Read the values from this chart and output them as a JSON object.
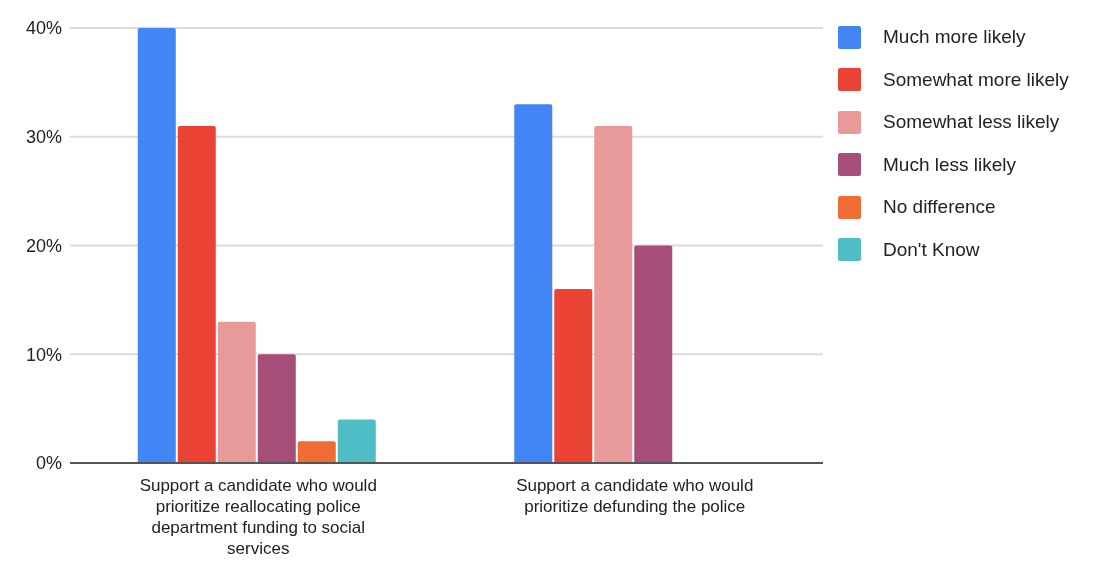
{
  "chart_data": {
    "type": "bar",
    "categories": [
      "Support a candidate who would prioritize reallocating police department funding to social services",
      "Support a candidate who would prioritize defunding the police"
    ],
    "series": [
      {
        "name": "Much more likely",
        "color": "#4285f4",
        "values": [
          40,
          33
        ]
      },
      {
        "name": "Somewhat more likely",
        "color": "#ea4335",
        "values": [
          31,
          16
        ]
      },
      {
        "name": "Somewhat less likely",
        "color": "#e8999a",
        "values": [
          13,
          31
        ]
      },
      {
        "name": "Much less likely",
        "color": "#a64d79",
        "values": [
          10,
          20
        ]
      },
      {
        "name": "No difference",
        "color": "#ef6c35",
        "values": [
          2,
          null
        ]
      },
      {
        "name": "Don't Know",
        "color": "#4ebdc6",
        "values": [
          4,
          null
        ]
      }
    ],
    "ylim": [
      0,
      40
    ],
    "yticks": [
      {
        "value": 0,
        "label": "0%"
      },
      {
        "value": 10,
        "label": "10%"
      },
      {
        "value": 20,
        "label": "20%"
      },
      {
        "value": 30,
        "label": "30%"
      },
      {
        "value": 40,
        "label": "40%"
      }
    ],
    "grid": "y",
    "legend": "top right"
  }
}
